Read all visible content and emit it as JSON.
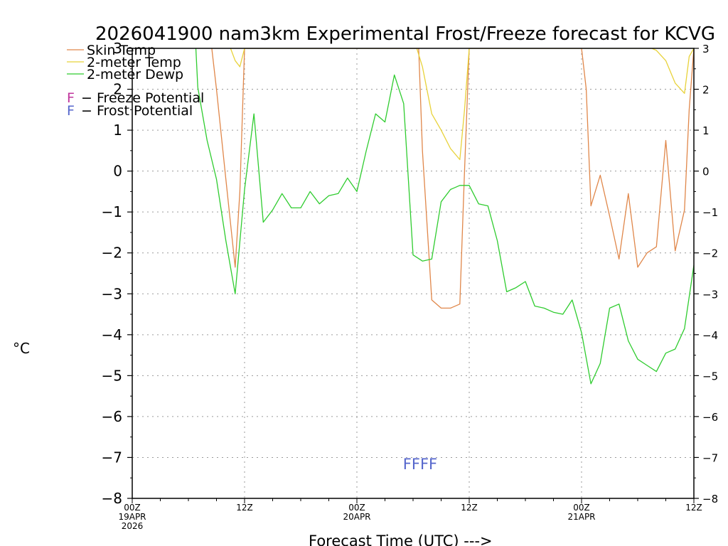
{
  "chart_data": {
    "type": "line",
    "title": "2026041900 nam3km Experimental Frost/Freeze forecast for KCVG",
    "xlabel": "Forecast Time (UTC) --->",
    "ylabel": "°C",
    "ylim": [
      -8,
      3
    ],
    "xlim_hours": [
      0,
      60
    ],
    "y_ticks": [
      "−8",
      "−7",
      "−6",
      "−5",
      "−4",
      "−3",
      "−2",
      "−1",
      "0",
      "1",
      "2",
      "3"
    ],
    "y_tick_values": [
      -8,
      -7,
      -6,
      -5,
      -4,
      -3,
      -2,
      -1,
      0,
      1,
      2,
      3
    ],
    "x_ticks": [
      {
        "hour": 0,
        "label": "00Z",
        "sub1": "19APR",
        "sub2": "2026"
      },
      {
        "hour": 12,
        "label": "12Z",
        "sub1": "",
        "sub2": ""
      },
      {
        "hour": 24,
        "label": "00Z",
        "sub1": "20APR",
        "sub2": ""
      },
      {
        "hour": 36,
        "label": "12Z",
        "sub1": "",
        "sub2": ""
      },
      {
        "hour": 48,
        "label": "00Z",
        "sub1": "21APR",
        "sub2": ""
      },
      {
        "hour": 60,
        "label": "12Z",
        "sub1": "",
        "sub2": ""
      }
    ],
    "grid": true,
    "legend_position": "top-left",
    "legend": [
      {
        "name": "Skin Temp",
        "color": "#e0874a"
      },
      {
        "name": "2-meter Temp",
        "color": "#e8d23a"
      },
      {
        "name": "2-meter Dewp",
        "color": "#2fcc2f"
      }
    ],
    "potential_legend": [
      {
        "letter": "F",
        "text": " − Freeze Potential",
        "color": "#c0359c"
      },
      {
        "letter": "F",
        "text": " − Frost Potential",
        "color": "#5566cc"
      }
    ],
    "frost_marks": {
      "text": "FFFF",
      "hour": 31.2,
      "value": -7.15,
      "color": "#5566cc"
    },
    "series": [
      {
        "name": "Skin Temp",
        "color": "#e0874a",
        "hours": [
          8.5,
          9,
          10,
          11,
          11.5,
          12,
          30.6,
          31,
          32,
          33,
          34,
          35,
          35.5,
          36,
          48,
          48.5,
          49,
          50,
          51,
          52,
          53,
          54,
          55,
          56,
          57,
          58,
          59,
          59.5,
          60
        ],
        "values": [
          3.0,
          2.0,
          -0.2,
          -2.35,
          -0.5,
          3.0,
          3.0,
          0.5,
          -3.15,
          -3.35,
          -3.35,
          -3.25,
          0.0,
          3.0,
          3.0,
          2.0,
          -0.85,
          -0.1,
          -1.1,
          -2.15,
          -0.55,
          -2.35,
          -2.0,
          -1.85,
          0.75,
          -1.95,
          -0.95,
          1.5,
          3.0
        ]
      },
      {
        "name": "2-meter Temp",
        "color": "#e8d23a",
        "hours": [
          10.5,
          11,
          11.5,
          12,
          30.4,
          31,
          32,
          33,
          34,
          35,
          35.5,
          36,
          55.5,
          56,
          57,
          58,
          59,
          59.5,
          60
        ],
        "values": [
          3.0,
          2.7,
          2.55,
          3.0,
          3.0,
          2.55,
          1.4,
          1.0,
          0.55,
          0.28,
          1.5,
          3.0,
          3.0,
          2.95,
          2.7,
          2.15,
          1.9,
          2.8,
          3.0
        ]
      },
      {
        "name": "2-meter Dewp",
        "color": "#2fcc2f",
        "hours": [
          6.8,
          7,
          8,
          9,
          10,
          11,
          12,
          13,
          14,
          15,
          16,
          17,
          18,
          19,
          20,
          21,
          22,
          23,
          24,
          25,
          26,
          27,
          28,
          29,
          30,
          31,
          32,
          33,
          34,
          35,
          36,
          37,
          38,
          39,
          40,
          41,
          42,
          43,
          44,
          45,
          46,
          47,
          48,
          49,
          50,
          51,
          52,
          53,
          54,
          55,
          56,
          57,
          58,
          59,
          60
        ],
        "values": [
          3.0,
          2.05,
          0.75,
          -0.2,
          -1.7,
          -3.0,
          -0.45,
          1.4,
          -1.25,
          -0.95,
          -0.55,
          -0.9,
          -0.9,
          -0.5,
          -0.8,
          -0.6,
          -0.55,
          -0.17,
          -0.5,
          0.5,
          1.4,
          1.2,
          2.35,
          1.65,
          -2.05,
          -2.2,
          -2.15,
          -0.75,
          -0.45,
          -0.35,
          -0.35,
          -0.8,
          -0.85,
          -1.7,
          -2.95,
          -2.85,
          -2.7,
          -3.3,
          -3.35,
          -3.45,
          -3.5,
          -3.15,
          -3.95,
          -5.2,
          -4.7,
          -3.35,
          -3.25,
          -4.15,
          -4.6,
          -4.75,
          -4.9,
          -4.45,
          -4.35,
          -3.85,
          -2.3
        ]
      }
    ]
  }
}
